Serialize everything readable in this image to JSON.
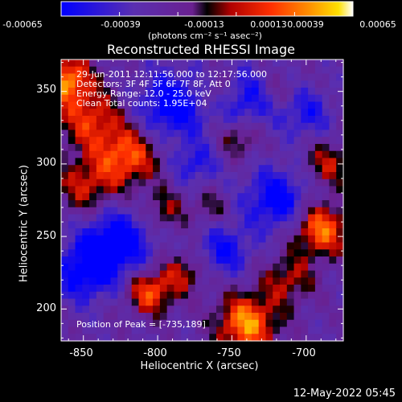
{
  "chart_data": {
    "type": "heatmap",
    "title": "Reconstructed RHESSI Image",
    "xlabel": "Heliocentric X (arcsec)",
    "ylabel": "Heliocentric Y (arcsec)",
    "xlim": [
      -865,
      -675
    ],
    "ylim": [
      178,
      372
    ],
    "x_ticks": [
      "-850",
      "-800",
      "-750",
      "-700"
    ],
    "x_tick_values": [
      -850,
      -800,
      -750,
      -700
    ],
    "y_ticks": [
      "200",
      "250",
      "300",
      "350"
    ],
    "y_tick_values": [
      200,
      250,
      300,
      350
    ],
    "colorbar": {
      "range": [
        -0.00065,
        0.00065
      ],
      "tick_labels": [
        "-0.00065",
        "-0.00039",
        "-0.00013",
        "0.00013",
        "0.00039",
        "0.00065"
      ],
      "tick_values": [
        -0.00065,
        -0.00039,
        -0.00013,
        0.00013,
        0.00039,
        0.00065
      ],
      "units": "(photons cm⁻² s⁻¹ asec⁻²)",
      "colormap": [
        "#0000ff",
        "#5a2fb0",
        "#6a2090",
        "#000000",
        "#b00000",
        "#ff3000",
        "#ff9000",
        "#ffe000",
        "#ffffff"
      ]
    },
    "annotations": {
      "time_range": "29-Jun-2011 12:11:56.000 to 12:17:56.000",
      "detectors": "Detectors: 3F 4F 5F 6F 7F 8F, Att 0",
      "energy_range": "Energy Range: 12.0 - 25.0 keV",
      "counts": "Clean    Total counts: 1.95E+04",
      "peak": "Position of Peak = [-735,189]"
    },
    "sources": [
      {
        "x": -862,
        "y": 358,
        "amp": 1.0,
        "sigma": 12
      },
      {
        "x": -845,
        "y": 330,
        "amp": 0.7,
        "sigma": 15
      },
      {
        "x": -820,
        "y": 305,
        "amp": 0.85,
        "sigma": 14
      },
      {
        "x": -848,
        "y": 285,
        "amp": 0.6,
        "sigma": 14
      },
      {
        "x": -795,
        "y": 268,
        "amp": 0.45,
        "sigma": 10
      },
      {
        "x": -805,
        "y": 212,
        "amp": 0.85,
        "sigma": 11
      },
      {
        "x": -782,
        "y": 225,
        "amp": 0.5,
        "sigma": 10
      },
      {
        "x": -740,
        "y": 190,
        "amp": 1.05,
        "sigma": 14
      },
      {
        "x": -712,
        "y": 220,
        "amp": 0.55,
        "sigma": 12
      },
      {
        "x": -690,
        "y": 255,
        "amp": 0.95,
        "sigma": 13
      },
      {
        "x": -685,
        "y": 300,
        "amp": 0.55,
        "sigma": 11
      },
      {
        "x": -745,
        "y": 318,
        "amp": 0.5,
        "sigma": 9
      },
      {
        "x": -765,
        "y": 270,
        "amp": 0.35,
        "sigma": 8
      },
      {
        "x": -760,
        "y": 350,
        "amp": 0.4,
        "sigma": 9
      },
      {
        "x": -720,
        "y": 350,
        "amp": 0.3,
        "sigma": 9
      },
      {
        "x": -828,
        "y": 245,
        "amp": -0.9,
        "sigma": 16
      },
      {
        "x": -850,
        "y": 225,
        "amp": -0.7,
        "sigma": 14
      },
      {
        "x": -790,
        "y": 340,
        "amp": -0.8,
        "sigma": 16
      },
      {
        "x": -740,
        "y": 345,
        "amp": -0.6,
        "sigma": 14
      },
      {
        "x": -720,
        "y": 275,
        "amp": -0.75,
        "sigma": 15
      },
      {
        "x": -755,
        "y": 240,
        "amp": -0.6,
        "sigma": 12
      },
      {
        "x": -700,
        "y": 335,
        "amp": -0.5,
        "sigma": 12
      },
      {
        "x": -775,
        "y": 300,
        "amp": -0.5,
        "sigma": 10
      }
    ]
  },
  "footer": {
    "date": "12-May-2022 05:45"
  }
}
